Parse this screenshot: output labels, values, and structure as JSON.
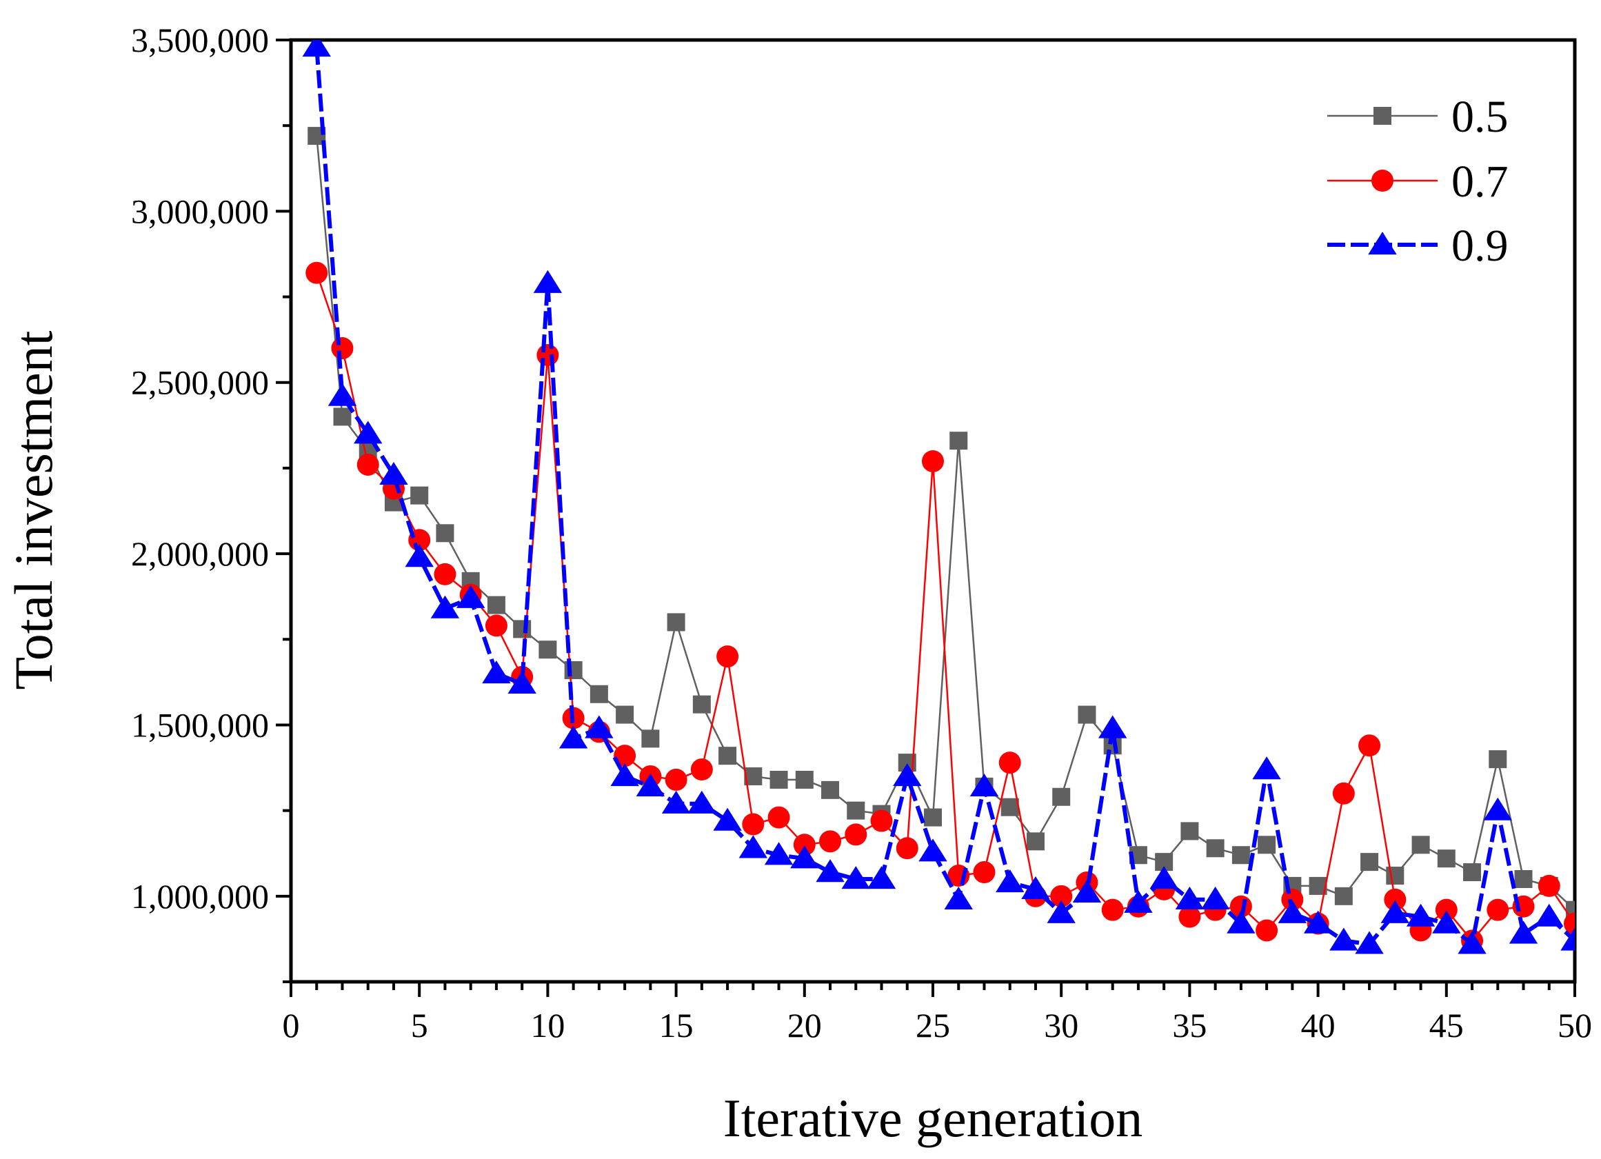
{
  "chart_data": {
    "type": "line",
    "title": "",
    "xlabel": "Iterative generation",
    "ylabel": "Total investment",
    "xlim": [
      0,
      50
    ],
    "ylim": [
      750000,
      3500000
    ],
    "xticks": [
      0,
      5,
      10,
      15,
      20,
      25,
      30,
      35,
      40,
      45,
      50
    ],
    "xtick_labels": [
      "0",
      "5",
      "10",
      "15",
      "20",
      "25",
      "30",
      "35",
      "40",
      "45",
      "50"
    ],
    "yticks": [
      1000000,
      1500000,
      2000000,
      2500000,
      3000000,
      3500000
    ],
    "ytick_labels": [
      "1,000,000",
      "1,500,000",
      "2,000,000",
      "2,500,000",
      "3,000,000",
      "3,500,000"
    ],
    "grid": false,
    "legend_position": "top-right",
    "x": [
      1,
      2,
      3,
      4,
      5,
      6,
      7,
      8,
      9,
      10,
      11,
      12,
      13,
      14,
      15,
      16,
      17,
      18,
      19,
      20,
      21,
      22,
      23,
      24,
      25,
      26,
      27,
      28,
      29,
      30,
      31,
      32,
      33,
      34,
      35,
      36,
      37,
      38,
      39,
      40,
      41,
      42,
      43,
      44,
      45,
      46,
      47,
      48,
      49,
      50
    ],
    "series": [
      {
        "name": "0.5",
        "color": "#606060",
        "marker": "square",
        "values": [
          3220000,
          2400000,
          2300000,
          2150000,
          2170000,
          2060000,
          1920000,
          1850000,
          1780000,
          1720000,
          1660000,
          1590000,
          1530000,
          1460000,
          1800000,
          1560000,
          1410000,
          1350000,
          1340000,
          1340000,
          1310000,
          1250000,
          1240000,
          1390000,
          1230000,
          2330000,
          1320000,
          1260000,
          1160000,
          1290000,
          1530000,
          1440000,
          1120000,
          1100000,
          1190000,
          1140000,
          1120000,
          1150000,
          1030000,
          1030000,
          1000000,
          1100000,
          1060000,
          1150000,
          1110000,
          1070000,
          1400000,
          1050000,
          1030000,
          960000
        ]
      },
      {
        "name": "0.7",
        "color": "#ff0000",
        "marker": "circle",
        "values": [
          2820000,
          2600000,
          2260000,
          2190000,
          2040000,
          1940000,
          1880000,
          1790000,
          1640000,
          2580000,
          1520000,
          1480000,
          1410000,
          1350000,
          1340000,
          1370000,
          1700000,
          1210000,
          1230000,
          1150000,
          1160000,
          1180000,
          1220000,
          1140000,
          2270000,
          1060000,
          1070000,
          1390000,
          1000000,
          1000000,
          1040000,
          960000,
          970000,
          1020000,
          940000,
          960000,
          970000,
          900000,
          990000,
          920000,
          1300000,
          1440000,
          990000,
          900000,
          960000,
          870000,
          960000,
          970000,
          1030000,
          920000
        ]
      },
      {
        "name": "0.9",
        "color": "#0000ff",
        "marker": "triangle",
        "values": [
          3480000,
          2460000,
          2350000,
          2230000,
          1990000,
          1840000,
          1870000,
          1650000,
          1620000,
          2790000,
          1460000,
          1490000,
          1350000,
          1320000,
          1270000,
          1270000,
          1220000,
          1140000,
          1120000,
          1110000,
          1070000,
          1050000,
          1050000,
          1350000,
          1130000,
          990000,
          1320000,
          1040000,
          1020000,
          950000,
          1010000,
          1490000,
          980000,
          1050000,
          990000,
          990000,
          920000,
          1370000,
          950000,
          920000,
          870000,
          860000,
          950000,
          940000,
          920000,
          860000,
          1250000,
          890000,
          940000,
          870000
        ]
      }
    ]
  }
}
